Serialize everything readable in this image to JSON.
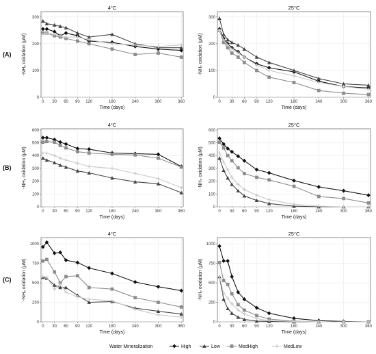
{
  "legend": {
    "title": "Water Mineralization",
    "entries": [
      "High",
      "Low",
      "MedHigh",
      "MedLow"
    ]
  },
  "series_styles": {
    "High": {
      "color": "#111111",
      "shape": "diamond"
    },
    "Low": {
      "color": "#444444",
      "shape": "triangle"
    },
    "MedHigh": {
      "color": "#8c8c8c",
      "shape": "square"
    },
    "MedLow": {
      "color": "#c9c9c9",
      "shape": "cross"
    }
  },
  "chart_data": [
    {
      "type": "line",
      "row_label": "(A)",
      "title": "4°C",
      "xlabel": "Time (days)",
      "ylabel": "-NH₂ oxidation (μM)",
      "xlim": [
        -5,
        365
      ],
      "ylim": [
        0,
        320
      ],
      "xticks": [
        0,
        30,
        60,
        90,
        120,
        180,
        240,
        300,
        360
      ],
      "yticks": [
        0,
        100,
        200,
        300
      ],
      "series": [
        {
          "name": "High",
          "x": [
            0,
            10,
            30,
            45,
            60,
            90,
            120,
            180,
            240,
            300,
            360
          ],
          "y": [
            255,
            255,
            245,
            230,
            240,
            230,
            210,
            205,
            190,
            180,
            175
          ]
        },
        {
          "name": "Low",
          "x": [
            0,
            10,
            30,
            45,
            60,
            90,
            120,
            180,
            240,
            300,
            360
          ],
          "y": [
            285,
            275,
            270,
            265,
            260,
            240,
            225,
            235,
            200,
            185,
            185
          ]
        },
        {
          "name": "MedHigh",
          "x": [
            0,
            10,
            30,
            45,
            60,
            90,
            120,
            180,
            240,
            300,
            360
          ],
          "y": [
            240,
            240,
            230,
            225,
            220,
            210,
            200,
            180,
            160,
            165,
            150
          ]
        },
        {
          "name": "MedLow",
          "x": [
            0,
            10,
            30,
            45,
            60,
            90,
            120,
            180,
            240,
            300,
            360
          ],
          "y": [
            235,
            240,
            235,
            230,
            225,
            225,
            215,
            200,
            195,
            190,
            195
          ]
        }
      ]
    },
    {
      "type": "line",
      "row_label": "",
      "title": "25°C",
      "xlabel": "Time (days)",
      "ylabel": "-NH₂ oxidation (μM)",
      "xlim": [
        -5,
        365
      ],
      "ylim": [
        0,
        320
      ],
      "xticks": [
        0,
        30,
        60,
        90,
        120,
        180,
        240,
        300,
        360
      ],
      "yticks": [
        0,
        100,
        200,
        300
      ],
      "series": [
        {
          "name": "High",
          "x": [
            0,
            10,
            20,
            30,
            45,
            60,
            90,
            120,
            180,
            240,
            300,
            360
          ],
          "y": [
            255,
            220,
            200,
            185,
            170,
            150,
            125,
            110,
            95,
            60,
            40,
            35
          ]
        },
        {
          "name": "Low",
          "x": [
            0,
            10,
            20,
            30,
            45,
            60,
            90,
            120,
            180,
            240,
            300,
            360
          ],
          "y": [
            295,
            235,
            215,
            205,
            195,
            180,
            150,
            130,
            100,
            70,
            50,
            45
          ]
        },
        {
          "name": "MedHigh",
          "x": [
            0,
            10,
            20,
            30,
            45,
            60,
            90,
            120,
            180,
            240,
            300,
            360
          ],
          "y": [
            250,
            205,
            185,
            165,
            150,
            130,
            100,
            75,
            55,
            25,
            15,
            10
          ]
        },
        {
          "name": "MedLow",
          "x": [
            0,
            10,
            20,
            30,
            45,
            60,
            90,
            120,
            180,
            240,
            300,
            360
          ],
          "y": [
            250,
            215,
            195,
            180,
            165,
            150,
            120,
            100,
            80,
            55,
            40,
            30
          ]
        }
      ]
    },
    {
      "type": "line",
      "row_label": "(B)",
      "title": "4°C",
      "xlabel": "Time (days)",
      "ylabel": "-NH₂ oxidation (μM)",
      "xlim": [
        -5,
        365
      ],
      "ylim": [
        0,
        610
      ],
      "xticks": [
        0,
        30,
        60,
        90,
        120,
        180,
        240,
        300,
        360
      ],
      "yticks": [
        0,
        100,
        200,
        300,
        400,
        500,
        600
      ],
      "series": [
        {
          "name": "High",
          "x": [
            0,
            10,
            30,
            45,
            60,
            90,
            120,
            180,
            240,
            300,
            360
          ],
          "y": [
            540,
            540,
            525,
            505,
            490,
            455,
            450,
            420,
            415,
            410,
            315
          ]
        },
        {
          "name": "Low",
          "x": [
            0,
            10,
            30,
            45,
            60,
            90,
            120,
            180,
            240,
            300,
            360
          ],
          "y": [
            380,
            365,
            345,
            325,
            310,
            280,
            265,
            225,
            195,
            180,
            110
          ]
        },
        {
          "name": "MedHigh",
          "x": [
            0,
            10,
            30,
            45,
            60,
            90,
            120,
            180,
            240,
            300,
            360
          ],
          "y": [
            505,
            510,
            505,
            480,
            460,
            430,
            420,
            410,
            405,
            380,
            310
          ]
        },
        {
          "name": "MedLow",
          "x": [
            0,
            10,
            30,
            45,
            60,
            90,
            120,
            180,
            240,
            300,
            360
          ],
          "y": [
            420,
            420,
            400,
            380,
            365,
            340,
            315,
            300,
            260,
            220,
            150
          ]
        }
      ]
    },
    {
      "type": "line",
      "row_label": "",
      "title": "25°C",
      "xlabel": "Time (days)",
      "ylabel": "-NH₂ oxidation (μM)",
      "xlim": [
        -5,
        365
      ],
      "ylim": [
        0,
        610
      ],
      "xticks": [
        0,
        30,
        60,
        90,
        120,
        180,
        240,
        300,
        360
      ],
      "yticks": [
        0,
        100,
        200,
        300,
        400,
        500,
        600
      ],
      "series": [
        {
          "name": "High",
          "x": [
            0,
            10,
            20,
            30,
            45,
            60,
            90,
            120,
            180,
            240,
            300,
            360
          ],
          "y": [
            535,
            490,
            455,
            430,
            395,
            360,
            290,
            265,
            205,
            155,
            125,
            90
          ]
        },
        {
          "name": "Low",
          "x": [
            0,
            10,
            20,
            30,
            45,
            60,
            90,
            120,
            180,
            240,
            300,
            360
          ],
          "y": [
            380,
            285,
            225,
            175,
            125,
            85,
            50,
            25,
            5,
            0,
            0,
            0
          ]
        },
        {
          "name": "MedHigh",
          "x": [
            0,
            10,
            20,
            30,
            45,
            60,
            90,
            120,
            180,
            240,
            300,
            360
          ],
          "y": [
            505,
            460,
            400,
            360,
            305,
            260,
            230,
            210,
            160,
            80,
            65,
            30
          ]
        },
        {
          "name": "MedLow",
          "x": [
            0,
            10,
            20,
            30,
            45,
            60,
            90,
            120,
            180,
            240,
            300,
            360
          ],
          "y": [
            420,
            350,
            290,
            230,
            175,
            135,
            90,
            55,
            20,
            5,
            0,
            0
          ]
        }
      ]
    },
    {
      "type": "line",
      "row_label": "(C)",
      "title": "4°C",
      "xlabel": "Time (days)",
      "ylabel": "-NH₂ oxidation (μM)",
      "xlim": [
        -5,
        365
      ],
      "ylim": [
        0,
        1080
      ],
      "xticks": [
        0,
        30,
        60,
        90,
        120,
        180,
        240,
        300,
        360
      ],
      "yticks": [
        0,
        250,
        500,
        750,
        1000
      ],
      "series": [
        {
          "name": "High",
          "x": [
            0,
            10,
            30,
            45,
            60,
            90,
            120,
            180,
            240,
            300,
            360
          ],
          "y": [
            960,
            1020,
            880,
            890,
            790,
            760,
            690,
            620,
            510,
            450,
            400
          ]
        },
        {
          "name": "Low",
          "x": [
            0,
            10,
            30,
            45,
            60,
            90,
            120,
            180,
            240,
            300,
            360
          ],
          "y": [
            570,
            560,
            470,
            440,
            440,
            340,
            250,
            260,
            175,
            135,
            100
          ]
        },
        {
          "name": "MedHigh",
          "x": [
            0,
            10,
            30,
            45,
            60,
            90,
            120,
            180,
            240,
            300,
            360
          ],
          "y": [
            780,
            800,
            640,
            500,
            580,
            590,
            440,
            420,
            310,
            250,
            190
          ]
        },
        {
          "name": "MedLow",
          "x": [
            0,
            10,
            30,
            45,
            60,
            90,
            120,
            180,
            240,
            300,
            360
          ],
          "y": [
            580,
            570,
            420,
            480,
            380,
            320,
            290,
            270,
            160,
            90,
            60
          ]
        }
      ]
    },
    {
      "type": "line",
      "row_label": "",
      "title": "25°C",
      "xlabel": "Time (days)",
      "ylabel": "-NH₂ oxidation (μM)",
      "xlim": [
        -5,
        365
      ],
      "ylim": [
        0,
        1080
      ],
      "xticks": [
        0,
        30,
        60,
        90,
        120,
        180,
        240,
        300,
        360
      ],
      "yticks": [
        0,
        250,
        500,
        750,
        1000
      ],
      "series": [
        {
          "name": "High",
          "x": [
            0,
            10,
            20,
            30,
            45,
            60,
            90,
            120,
            180,
            240,
            300,
            360
          ],
          "y": [
            970,
            780,
            780,
            580,
            380,
            290,
            180,
            110,
            45,
            15,
            5,
            0
          ]
        },
        {
          "name": "Low",
          "x": [
            0,
            10,
            20,
            30,
            45,
            60,
            90,
            120,
            180,
            240,
            300,
            360
          ],
          "y": [
            580,
            290,
            170,
            110,
            60,
            30,
            10,
            5,
            0,
            0,
            0,
            0
          ]
        },
        {
          "name": "MedHigh",
          "x": [
            0,
            10,
            20,
            30,
            45,
            60,
            90,
            120,
            180,
            240,
            300,
            360
          ],
          "y": [
            760,
            530,
            480,
            360,
            220,
            150,
            80,
            35,
            10,
            0,
            0,
            0
          ]
        },
        {
          "name": "MedLow",
          "x": [
            0,
            10,
            20,
            30,
            45,
            60,
            90,
            120,
            180,
            240,
            300,
            360
          ],
          "y": [
            580,
            370,
            300,
            230,
            150,
            100,
            40,
            15,
            5,
            0,
            0,
            0
          ]
        }
      ]
    }
  ]
}
